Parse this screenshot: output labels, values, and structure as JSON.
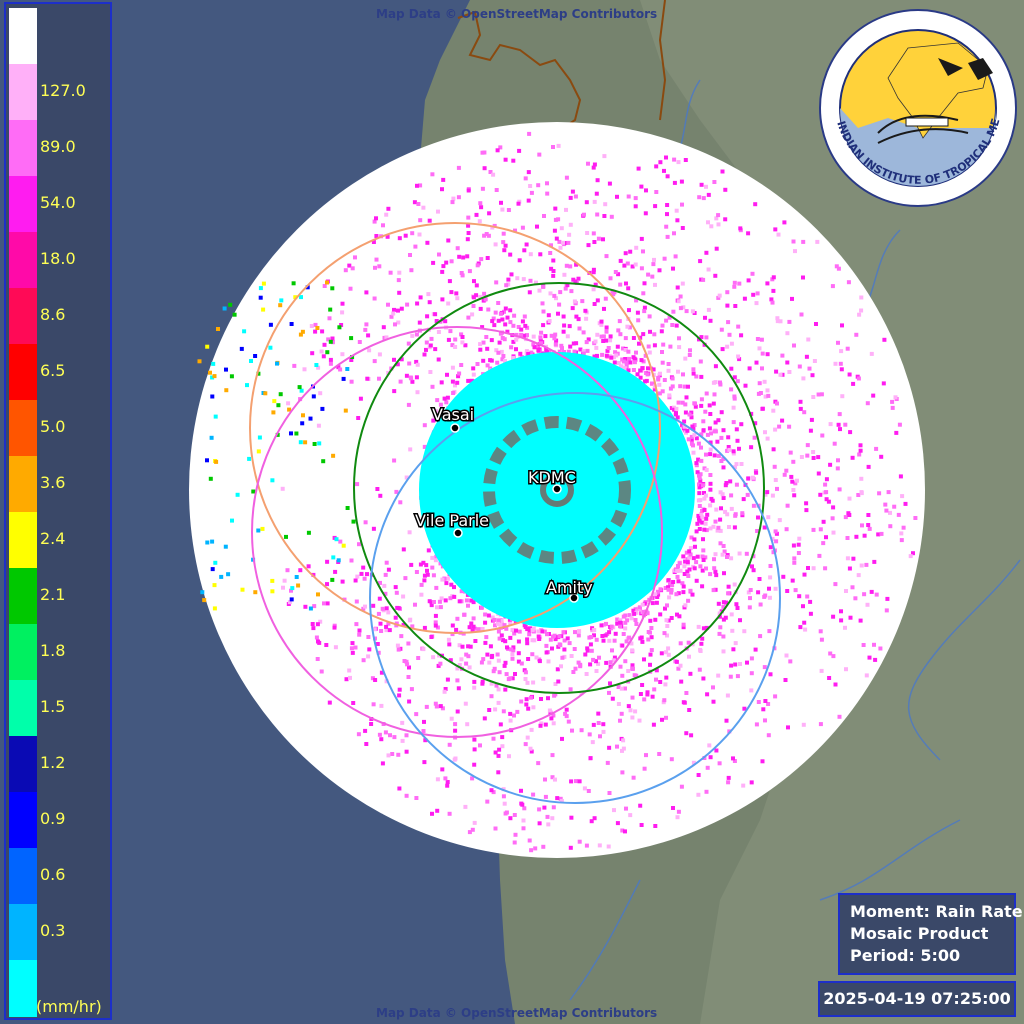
{
  "map": {
    "attribution": "Map Data © OpenStreetMap Contributors",
    "coverage_color": "#ffffff",
    "sea_color": "#44587f",
    "land_color": "#76836e"
  },
  "legend": {
    "unit": "(mm/hr)",
    "levels": [
      {
        "label": "",
        "color": "#ffffff"
      },
      {
        "label": "127.0",
        "color": "#ffb0f8"
      },
      {
        "label": "89.0",
        "color": "#ff6cf6"
      },
      {
        "label": "54.0",
        "color": "#ff1cf0"
      },
      {
        "label": "18.0",
        "color": "#ff0aa8"
      },
      {
        "label": "8.6",
        "color": "#ff0a56"
      },
      {
        "label": "6.5",
        "color": "#ff0000"
      },
      {
        "label": "5.0",
        "color": "#ff5500"
      },
      {
        "label": "3.6",
        "color": "#ffaa00"
      },
      {
        "label": "2.4",
        "color": "#ffff00"
      },
      {
        "label": "2.1",
        "color": "#00c800"
      },
      {
        "label": "1.8",
        "color": "#00f060"
      },
      {
        "label": "1.5",
        "color": "#00ffaa"
      },
      {
        "label": "1.2",
        "color": "#0a0ab4"
      },
      {
        "label": "0.9",
        "color": "#0000ff"
      },
      {
        "label": "0.6",
        "color": "#0064ff"
      },
      {
        "label": "0.3",
        "color": "#00b4ff"
      },
      {
        "label": "",
        "color": "#00ffff"
      }
    ]
  },
  "sites": [
    {
      "name": "Vasai"
    },
    {
      "name": "KDMC"
    },
    {
      "name": "Vile Parle"
    },
    {
      "name": "Amity"
    }
  ],
  "range_rings": [
    {
      "site": "orange",
      "color": "#f4a070"
    },
    {
      "site": "pink",
      "color": "#f060e0"
    },
    {
      "site": "green",
      "color": "#108a10"
    },
    {
      "site": "blue",
      "color": "#5aa0ee"
    }
  ],
  "info": {
    "moment": "Moment: Rain Rate",
    "product": "Mosaic Product",
    "period": "Period: 5:00"
  },
  "timestamp": "2025-04-19 07:25:00",
  "logo": {
    "text": "INDIAN INSTITUTE OF TROPICAL METEOROLOGY PUNE",
    "icon": "iitm-logo-icon"
  }
}
